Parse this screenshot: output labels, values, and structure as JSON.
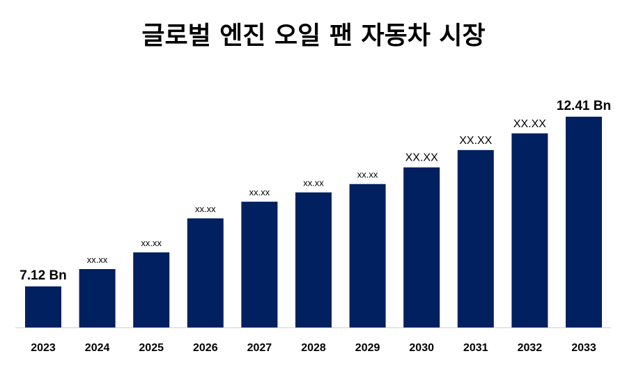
{
  "chart_data": {
    "type": "bar",
    "title": "글로벌 엔진 오일 팬 자동차 시장",
    "xlabel": "",
    "ylabel": "",
    "categories": [
      "2023",
      "2024",
      "2025",
      "2026",
      "2027",
      "2028",
      "2029",
      "2030",
      "2031",
      "2032",
      "2033"
    ],
    "values": [
      7.12,
      7.66,
      8.18,
      9.24,
      9.76,
      10.05,
      10.31,
      10.83,
      11.37,
      11.89,
      12.41
    ],
    "data_labels": [
      "7.12 Bn",
      "xx.xx",
      "xx.xx",
      "xx.xx",
      "xx.xx",
      "xx.xx",
      "xx.xx",
      "XX.XX",
      "XX.XX",
      "XX.XX",
      "12.41 Bn"
    ],
    "ylim": [
      5.84,
      13.23
    ],
    "grid": false,
    "legend": "none",
    "bar_color": "#002060"
  }
}
